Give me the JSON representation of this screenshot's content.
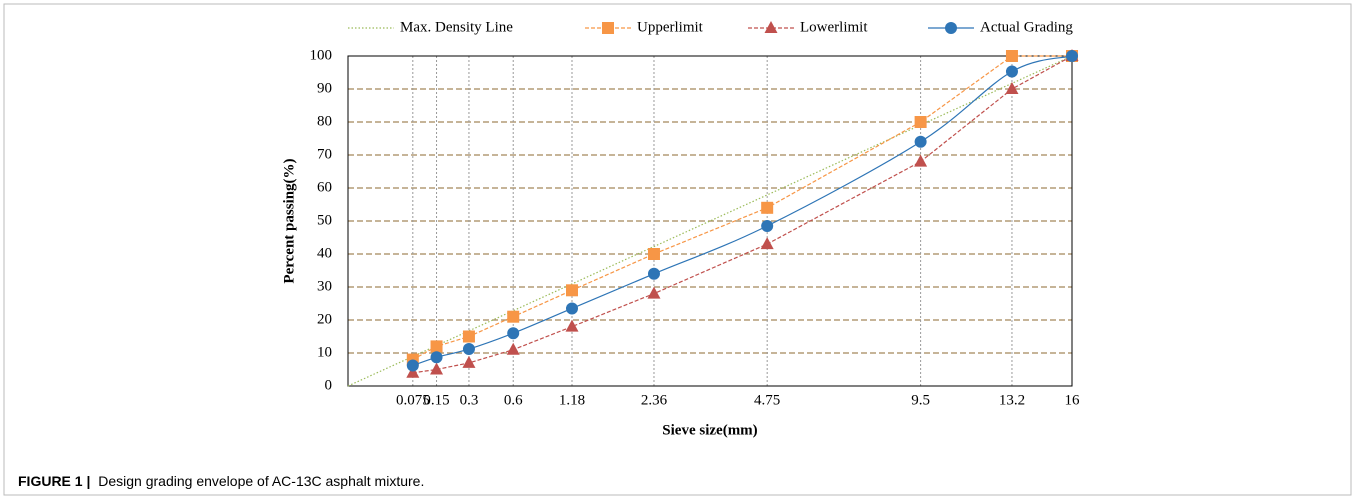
{
  "chart_data": {
    "type": "line",
    "x_label": "Sieve size(mm)",
    "y_label": "Percent passing(%)",
    "x_scale": "power",
    "x_exponent": 0.45,
    "xlim": [
      0,
      16
    ],
    "xticks": [
      0.075,
      0.15,
      0.3,
      0.6,
      1.18,
      2.36,
      4.75,
      9.5,
      13.2,
      16
    ],
    "ylim": [
      0,
      100
    ],
    "yticks": [
      0,
      10,
      20,
      30,
      40,
      50,
      60,
      70,
      80,
      90,
      100
    ],
    "grid": true,
    "legend": "top",
    "x": [
      0.075,
      0.15,
      0.3,
      0.6,
      1.18,
      2.36,
      4.75,
      9.5,
      13.2,
      16
    ],
    "series": [
      {
        "name": "Max. Density Line",
        "color": "#9bbb59",
        "style": "dotted",
        "marker": "none",
        "x": [
          0,
          16
        ],
        "values": [
          0,
          100
        ]
      },
      {
        "name": "Upperlimit",
        "color": "#f79646",
        "style": "dashed",
        "marker": "square",
        "values": [
          8,
          12,
          15,
          21,
          29,
          40,
          54,
          80,
          100,
          100
        ]
      },
      {
        "name": "Lowerlimit",
        "color": "#c0504d",
        "style": "dashed",
        "marker": "triangle",
        "values": [
          4,
          5,
          7,
          11,
          18,
          28,
          43,
          68,
          90,
          100
        ]
      },
      {
        "name": "Actual Grading",
        "color": "#2e75b6",
        "style": "smooth",
        "marker": "circle",
        "values": [
          6.2,
          8.7,
          11.2,
          16,
          23.5,
          34,
          48.5,
          74,
          95.3,
          100
        ]
      }
    ]
  },
  "caption": {
    "label": "FIGURE 1 |",
    "text": "Design grading envelope of AC-13C asphalt mixture."
  }
}
